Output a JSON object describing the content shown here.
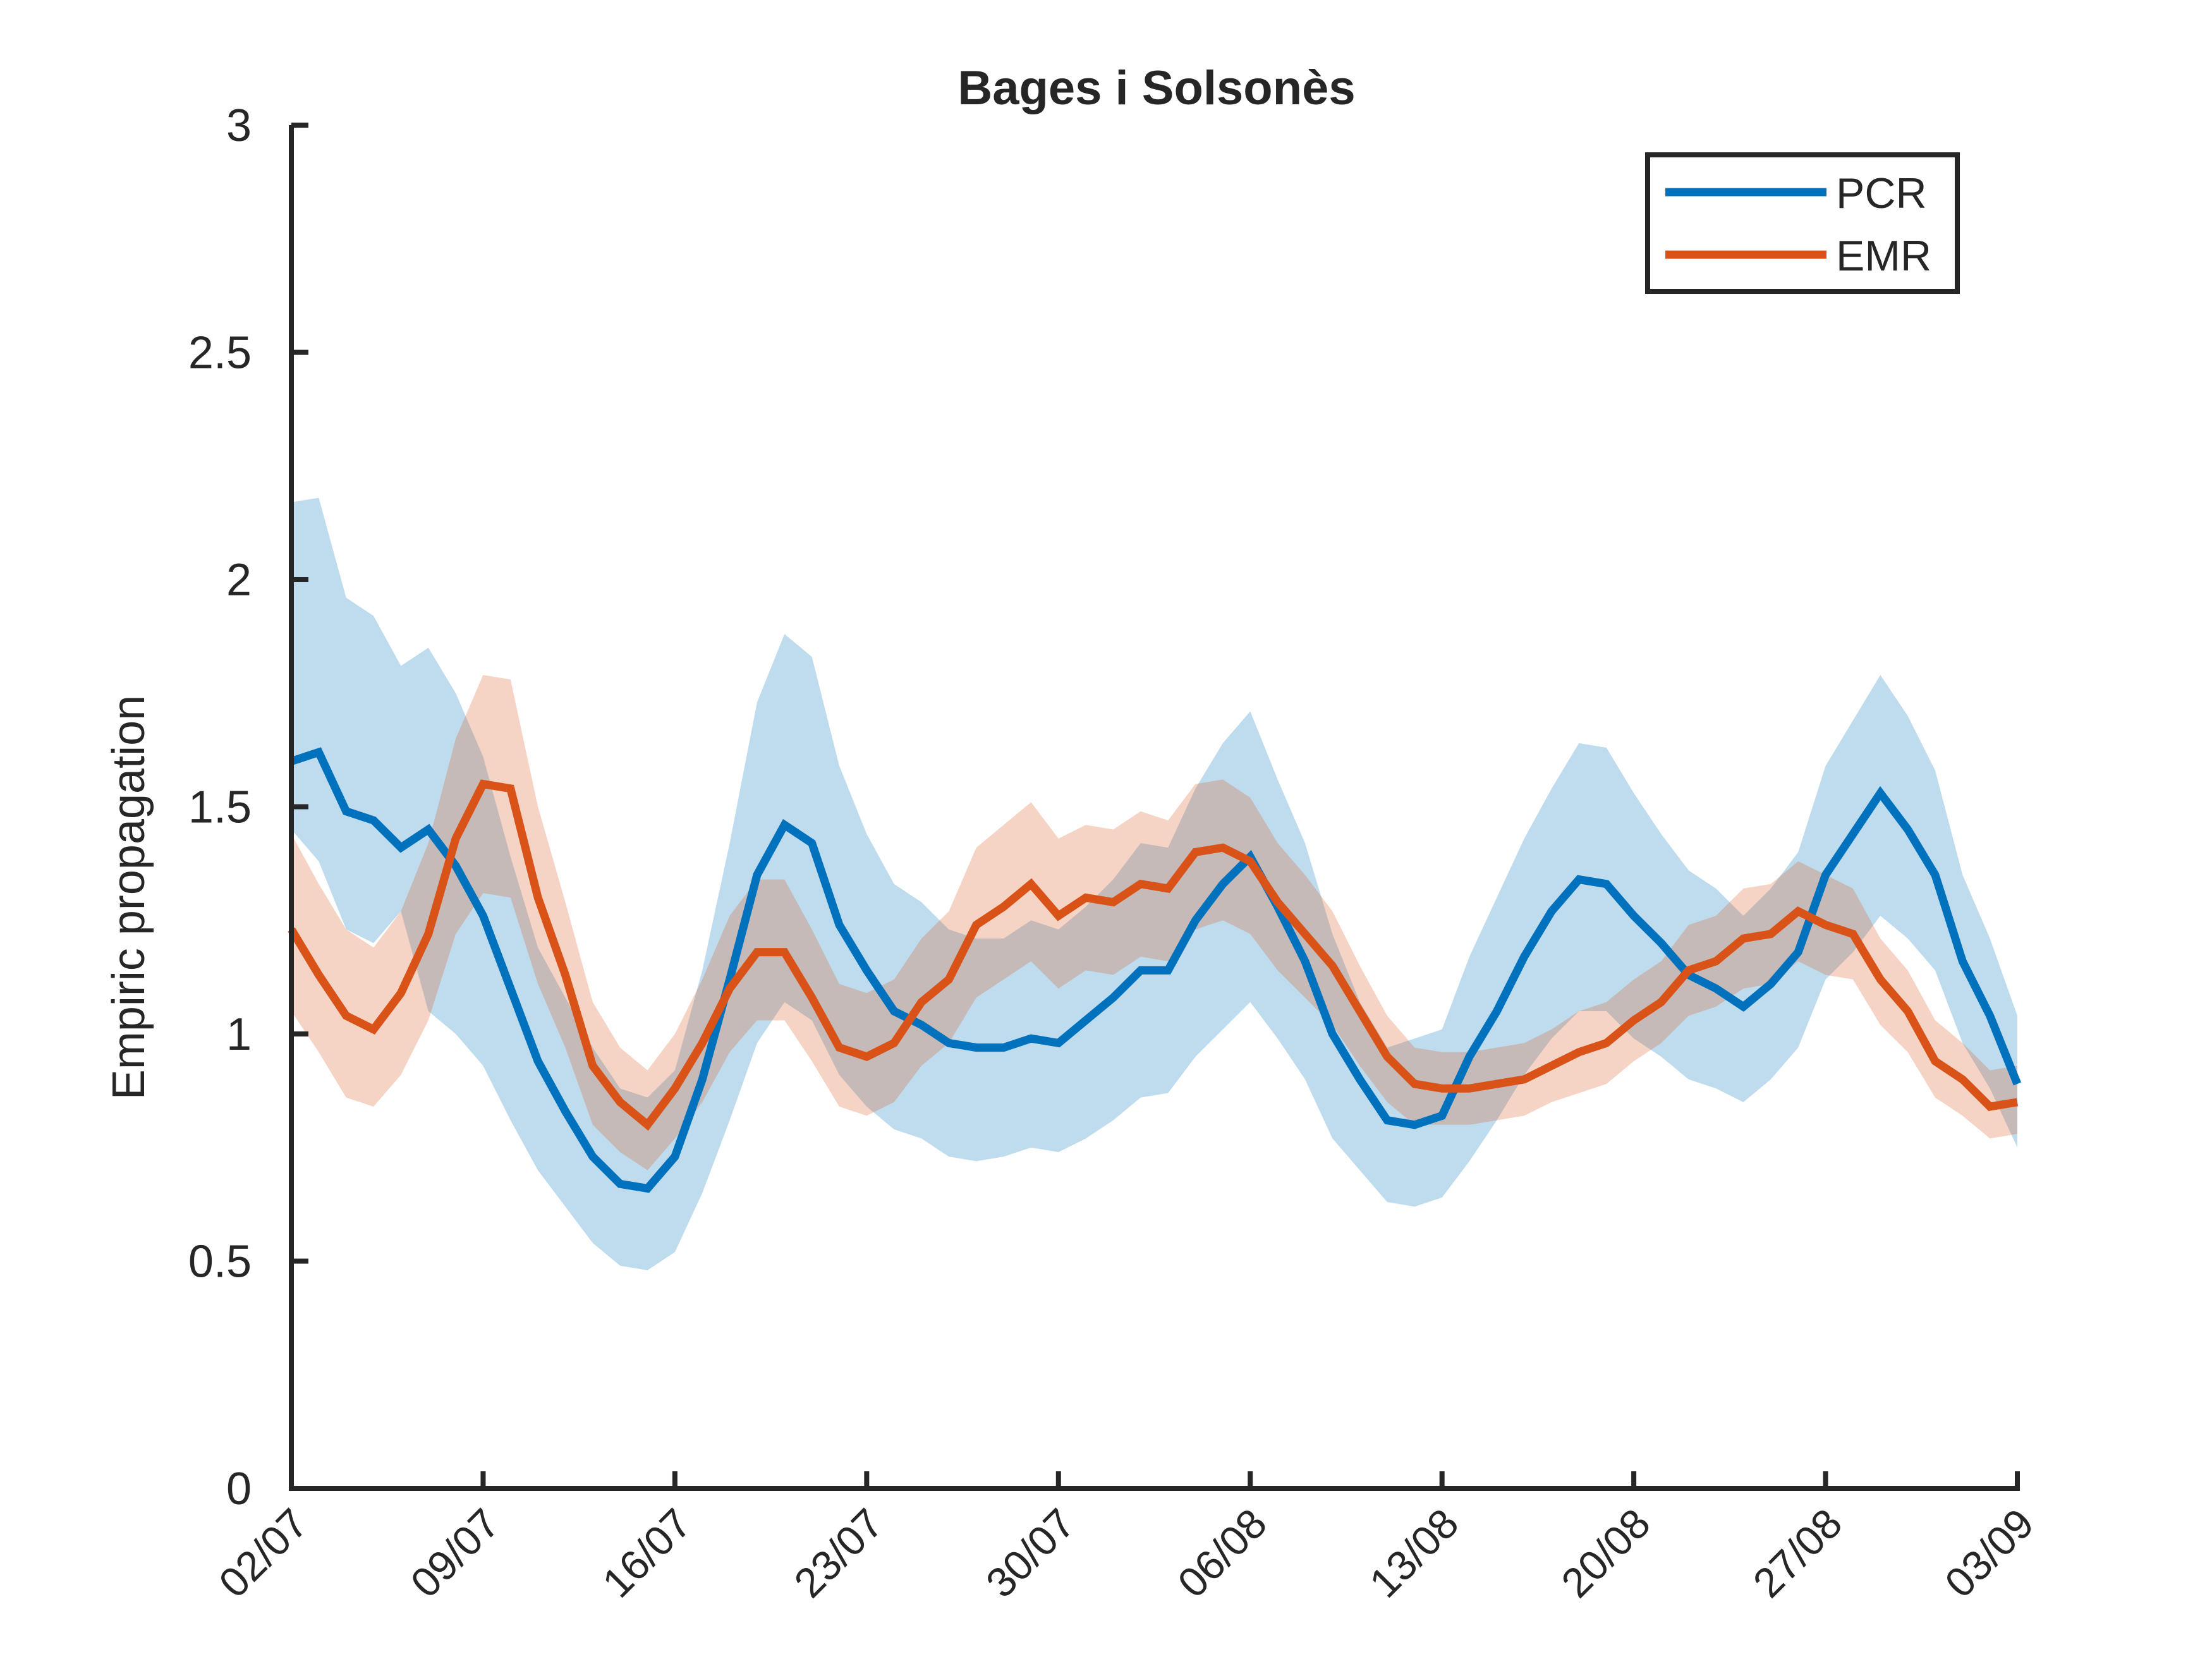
{
  "chart_data": {
    "type": "line",
    "title": "Bages i Solsonès",
    "xlabel": "",
    "ylabel": "Empiric propagation",
    "ylim": [
      0,
      3
    ],
    "yticks": [
      0,
      0.5,
      1,
      1.5,
      2,
      2.5,
      3
    ],
    "ytick_labels": [
      "0",
      "0.5",
      "1",
      "1.5",
      "2",
      "2.5",
      "3"
    ],
    "xtick_labels": [
      "02/07",
      "09/07",
      "16/07",
      "23/07",
      "30/07",
      "06/08",
      "13/08",
      "20/08",
      "27/08",
      "03/09"
    ],
    "x_start_date": "02/07",
    "x_end_date": "03/09",
    "grid": false,
    "legend_position": "top-right",
    "series": [
      {
        "name": "PCR",
        "color": "#0072BD",
        "band_color": "#0072BD",
        "values": [
          1.6,
          1.62,
          1.49,
          1.47,
          1.41,
          1.45,
          1.37,
          1.26,
          1.1,
          0.94,
          0.83,
          0.73,
          0.67,
          0.66,
          0.73,
          0.9,
          1.12,
          1.35,
          1.46,
          1.42,
          1.24,
          1.14,
          1.05,
          1.02,
          0.98,
          0.97,
          0.97,
          0.99,
          0.98,
          1.03,
          1.08,
          1.14,
          1.14,
          1.25,
          1.33,
          1.39,
          1.28,
          1.16,
          1.0,
          0.9,
          0.81,
          0.8,
          0.82,
          0.95,
          1.05,
          1.17,
          1.27,
          1.34,
          1.33,
          1.26,
          1.2,
          1.13,
          1.1,
          1.06,
          1.11,
          1.18,
          1.35,
          1.44,
          1.53,
          1.45,
          1.35,
          1.16,
          1.04,
          0.89
        ],
        "upper": [
          2.17,
          2.18,
          1.96,
          1.92,
          1.81,
          1.85,
          1.75,
          1.61,
          1.39,
          1.19,
          1.08,
          0.97,
          0.88,
          0.86,
          0.92,
          1.14,
          1.42,
          1.73,
          1.88,
          1.83,
          1.59,
          1.44,
          1.33,
          1.29,
          1.23,
          1.21,
          1.21,
          1.25,
          1.23,
          1.28,
          1.34,
          1.42,
          1.41,
          1.54,
          1.64,
          1.71,
          1.56,
          1.42,
          1.22,
          1.07,
          0.97,
          0.99,
          1.01,
          1.17,
          1.3,
          1.43,
          1.54,
          1.64,
          1.63,
          1.53,
          1.44,
          1.36,
          1.32,
          1.26,
          1.32,
          1.4,
          1.59,
          1.69,
          1.79,
          1.7,
          1.58,
          1.35,
          1.21,
          1.04
        ],
        "lower": [
          1.45,
          1.38,
          1.23,
          1.2,
          1.27,
          1.05,
          1.0,
          0.93,
          0.81,
          0.7,
          0.62,
          0.54,
          0.49,
          0.48,
          0.52,
          0.65,
          0.81,
          0.98,
          1.07,
          1.03,
          0.91,
          0.84,
          0.79,
          0.77,
          0.73,
          0.72,
          0.73,
          0.75,
          0.74,
          0.77,
          0.81,
          0.86,
          0.87,
          0.95,
          1.01,
          1.07,
          0.99,
          0.9,
          0.77,
          0.7,
          0.63,
          0.62,
          0.64,
          0.72,
          0.81,
          0.91,
          0.99,
          1.05,
          1.05,
          0.99,
          0.95,
          0.9,
          0.88,
          0.85,
          0.9,
          0.97,
          1.12,
          1.18,
          1.26,
          1.21,
          1.14,
          0.98,
          0.88,
          0.75
        ]
      },
      {
        "name": "EMR",
        "color": "#D95319",
        "band_color": "#D95319",
        "values": [
          1.23,
          1.13,
          1.04,
          1.01,
          1.09,
          1.22,
          1.43,
          1.55,
          1.54,
          1.3,
          1.13,
          0.93,
          0.85,
          0.8,
          0.88,
          0.98,
          1.1,
          1.18,
          1.18,
          1.08,
          0.97,
          0.95,
          0.98,
          1.07,
          1.12,
          1.24,
          1.28,
          1.33,
          1.26,
          1.3,
          1.29,
          1.33,
          1.32,
          1.4,
          1.41,
          1.38,
          1.29,
          1.22,
          1.15,
          1.05,
          0.95,
          0.89,
          0.88,
          0.88,
          0.89,
          0.9,
          0.93,
          0.96,
          0.98,
          1.03,
          1.07,
          1.14,
          1.16,
          1.21,
          1.22,
          1.27,
          1.24,
          1.22,
          1.12,
          1.05,
          0.94,
          0.9,
          0.84,
          0.85
        ],
        "upper": [
          1.44,
          1.33,
          1.23,
          1.19,
          1.27,
          1.42,
          1.65,
          1.79,
          1.78,
          1.5,
          1.29,
          1.07,
          0.97,
          0.92,
          1.0,
          1.12,
          1.26,
          1.34,
          1.34,
          1.23,
          1.11,
          1.09,
          1.12,
          1.21,
          1.27,
          1.41,
          1.46,
          1.51,
          1.43,
          1.46,
          1.45,
          1.49,
          1.47,
          1.55,
          1.56,
          1.52,
          1.42,
          1.35,
          1.27,
          1.15,
          1.04,
          0.97,
          0.96,
          0.96,
          0.97,
          0.98,
          1.01,
          1.05,
          1.07,
          1.12,
          1.16,
          1.24,
          1.26,
          1.32,
          1.33,
          1.38,
          1.35,
          1.32,
          1.21,
          1.14,
          1.03,
          0.98,
          0.92,
          0.93
        ],
        "lower": [
          1.05,
          0.96,
          0.86,
          0.84,
          0.91,
          1.03,
          1.22,
          1.31,
          1.3,
          1.11,
          0.97,
          0.8,
          0.74,
          0.7,
          0.77,
          0.85,
          0.96,
          1.03,
          1.03,
          0.94,
          0.84,
          0.82,
          0.85,
          0.93,
          0.98,
          1.08,
          1.12,
          1.16,
          1.1,
          1.14,
          1.13,
          1.17,
          1.16,
          1.23,
          1.25,
          1.22,
          1.14,
          1.08,
          1.02,
          0.93,
          0.85,
          0.8,
          0.8,
          0.8,
          0.81,
          0.82,
          0.85,
          0.87,
          0.89,
          0.94,
          0.98,
          1.04,
          1.06,
          1.1,
          1.11,
          1.16,
          1.13,
          1.12,
          1.02,
          0.96,
          0.86,
          0.82,
          0.77,
          0.78
        ]
      }
    ]
  }
}
